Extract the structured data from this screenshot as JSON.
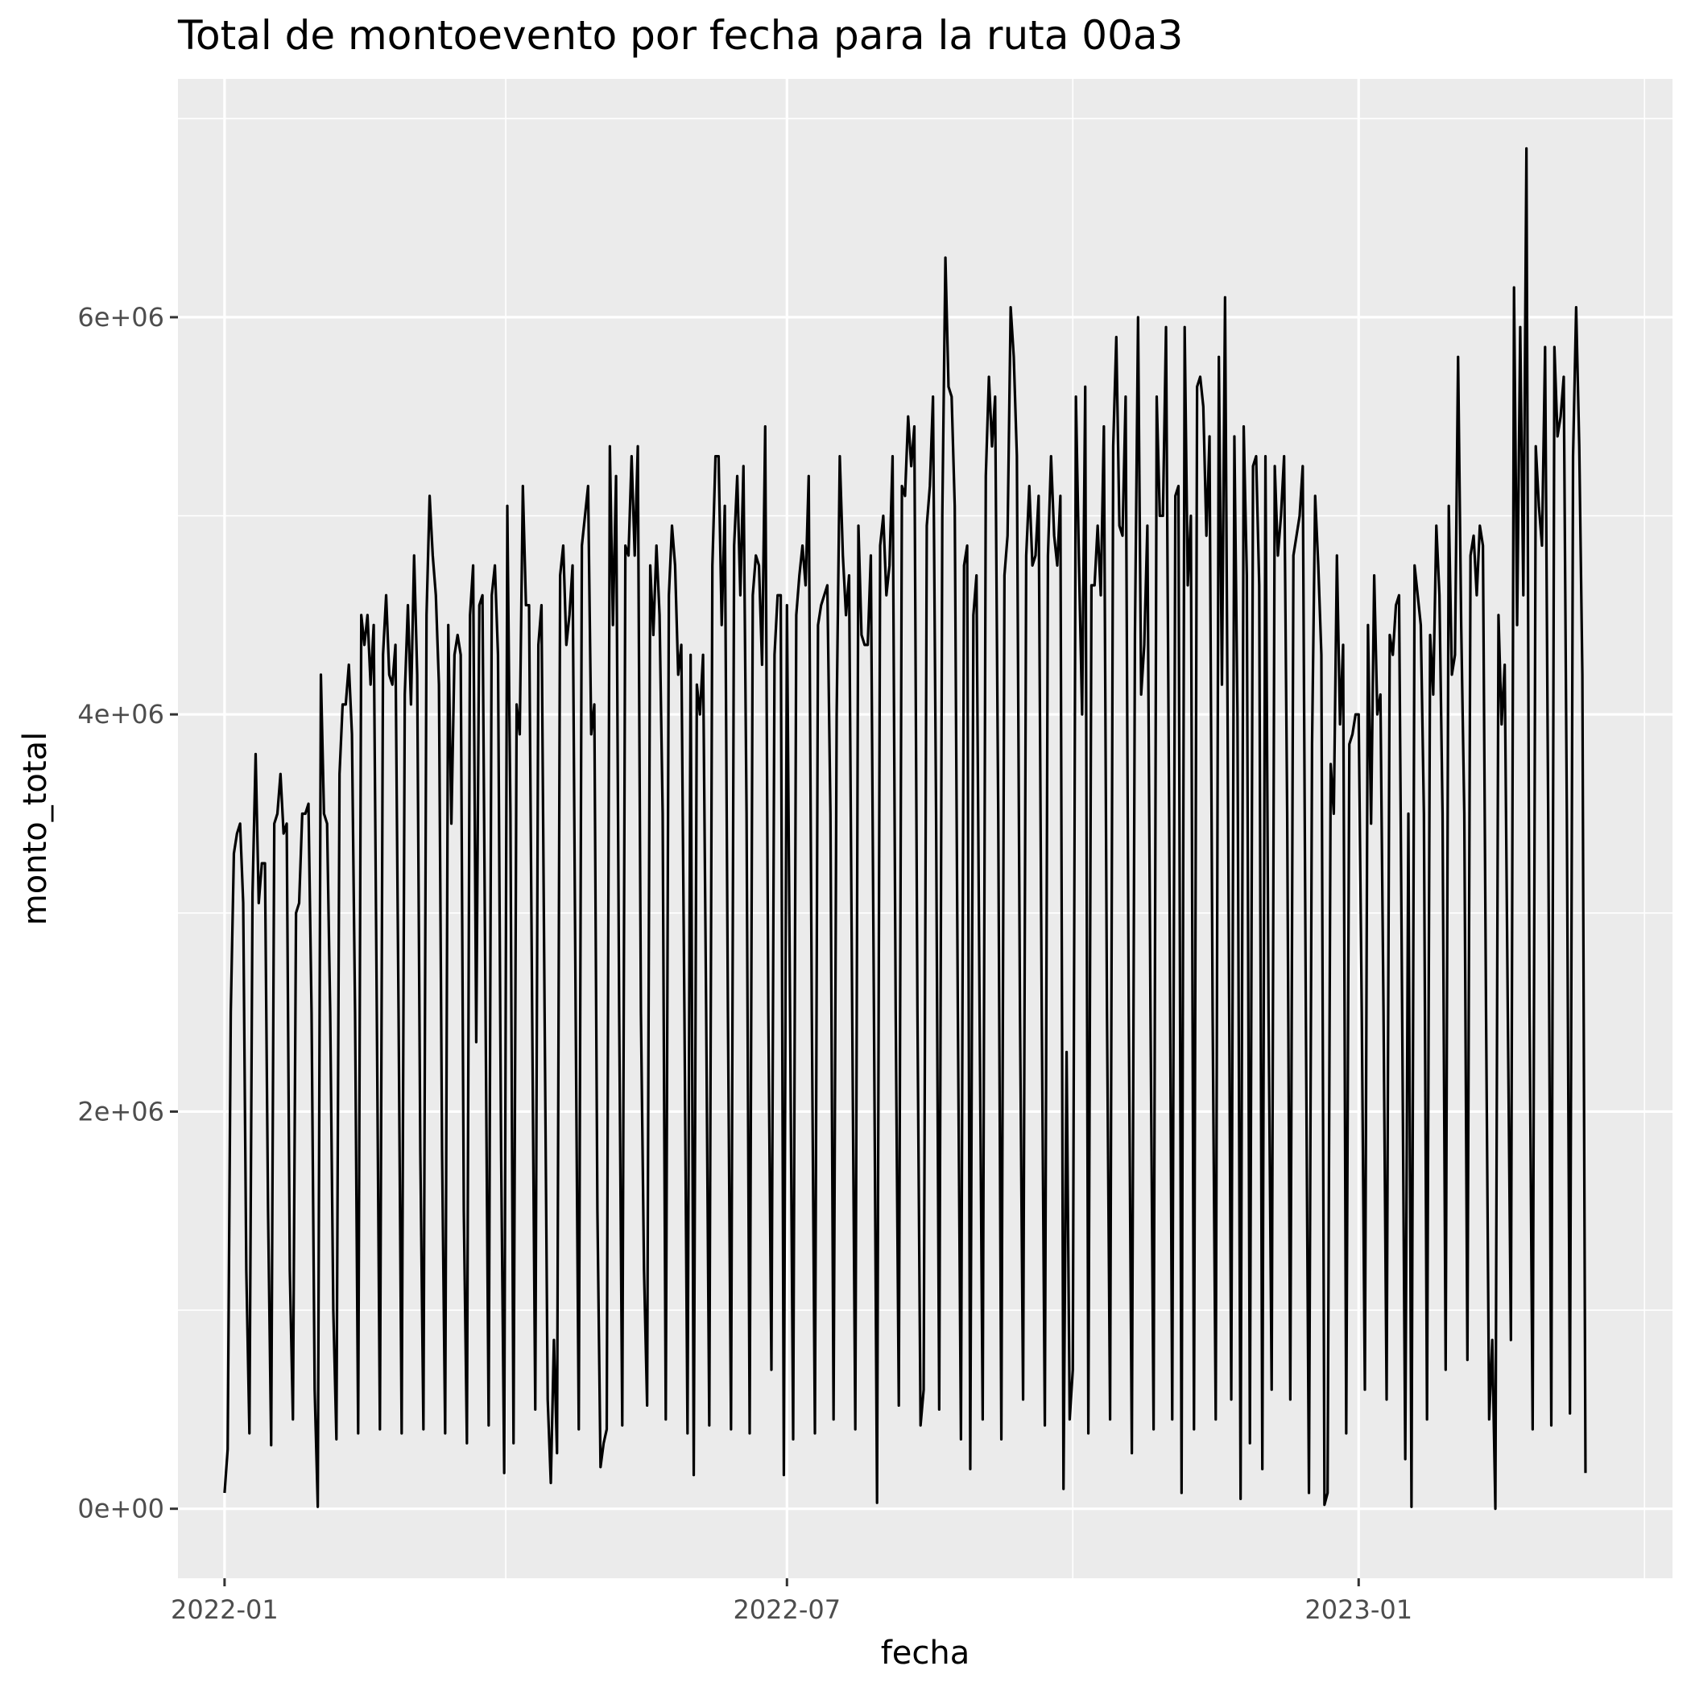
{
  "chart_data": {
    "type": "line",
    "title": "Total de montoevento por fecha para la ruta 00a3",
    "xlabel": "fecha",
    "ylabel": "monto_total",
    "xlim": [
      "2021-12-17",
      "2023-04-12"
    ],
    "ylim": [
      -350000,
      7200000
    ],
    "x_ticks": [
      {
        "date": "2022-01-01",
        "label": "2022-01"
      },
      {
        "date": "2022-07-01",
        "label": "2022-07"
      },
      {
        "date": "2023-01-01",
        "label": "2023-01"
      }
    ],
    "y_ticks": [
      {
        "value": 0,
        "label": "0e+00"
      },
      {
        "value": 2000000,
        "label": "2e+06"
      },
      {
        "value": 4000000,
        "label": "4e+06"
      },
      {
        "value": 6000000,
        "label": "6e+06"
      }
    ],
    "grid": true,
    "legend": "none",
    "series": [
      {
        "color": "#000000",
        "start_date": "2022-01-01",
        "values": [
          80000,
          300000,
          2500000,
          3300000,
          3400000,
          3450000,
          3050000,
          1200000,
          380000,
          3100000,
          3800000,
          3050000,
          3250000,
          3250000,
          1500000,
          320000,
          3450000,
          3500000,
          3700000,
          3400000,
          3450000,
          1200000,
          450000,
          3000000,
          3050000,
          3500000,
          3500000,
          3550000,
          2500000,
          600000,
          10000,
          4200000,
          3500000,
          3450000,
          2500000,
          1000000,
          350000,
          3700000,
          4050000,
          4050000,
          4250000,
          3900000,
          2500000,
          380000,
          4500000,
          4350000,
          4500000,
          4150000,
          4450000,
          2500000,
          400000,
          4300000,
          4600000,
          4200000,
          4150000,
          4350000,
          2500000,
          380000,
          4100000,
          4550000,
          4050000,
          4800000,
          4200000,
          1800000,
          400000,
          4500000,
          5100000,
          4800000,
          4600000,
          4150000,
          1800000,
          380000,
          4450000,
          3450000,
          4300000,
          4400000,
          4300000,
          1500000,
          330000,
          4500000,
          4750000,
          2350000,
          4550000,
          4600000,
          2500000,
          420000,
          4600000,
          4750000,
          4300000,
          1800000,
          180000,
          5050000,
          3500000,
          330000,
          4050000,
          3900000,
          5150000,
          4550000,
          4550000,
          2500000,
          500000,
          4350000,
          4550000,
          2500000,
          550000,
          130000,
          850000,
          280000,
          4700000,
          4850000,
          4350000,
          4500000,
          4750000,
          2500000,
          400000,
          4850000,
          5000000,
          5150000,
          3900000,
          4050000,
          1500000,
          210000,
          330000,
          400000,
          5350000,
          4450000,
          5200000,
          2500000,
          420000,
          4850000,
          4800000,
          5300000,
          4800000,
          5350000,
          2500000,
          1200000,
          520000,
          4750000,
          4400000,
          4850000,
          4500000,
          3500000,
          450000,
          4600000,
          4950000,
          4750000,
          4200000,
          4350000,
          2500000,
          380000,
          4300000,
          170000,
          4150000,
          4000000,
          4300000,
          2500000,
          420000,
          4750000,
          5300000,
          5300000,
          4450000,
          5050000,
          2500000,
          400000,
          4850000,
          5200000,
          4600000,
          5250000,
          3500000,
          380000,
          4600000,
          4800000,
          4750000,
          4250000,
          5450000,
          2500000,
          700000,
          4300000,
          4600000,
          4600000,
          170000,
          4550000,
          2500000,
          350000,
          4500000,
          4700000,
          4850000,
          4650000,
          5200000,
          2500000,
          380000,
          4450000,
          4550000,
          4600000,
          4650000,
          3500000,
          450000,
          4000000,
          5300000,
          4800000,
          4500000,
          4700000,
          2500000,
          400000,
          4950000,
          4400000,
          4350000,
          4350000,
          4800000,
          2500000,
          30000,
          4850000,
          5000000,
          4600000,
          4750000,
          5300000,
          2500000,
          520000,
          5150000,
          5100000,
          5500000,
          5250000,
          5450000,
          2500000,
          420000,
          600000,
          4950000,
          5150000,
          5600000,
          3500000,
          500000,
          5000000,
          6300000,
          5650000,
          5600000,
          5050000,
          2500000,
          350000,
          4750000,
          4850000,
          200000,
          4500000,
          4700000,
          2500000,
          450000,
          5200000,
          5700000,
          5350000,
          5600000,
          3500000,
          350000,
          4700000,
          4900000,
          6050000,
          5800000,
          5300000,
          2500000,
          550000,
          4800000,
          5150000,
          4750000,
          4800000,
          5100000,
          2500000,
          420000,
          4800000,
          5300000,
          4900000,
          4750000,
          5100000,
          100000,
          2300000,
          450000,
          700000,
          5600000,
          4750000,
          4000000,
          5650000,
          380000,
          4650000,
          4650000,
          4950000,
          4600000,
          5450000,
          2500000,
          450000,
          5350000,
          5900000,
          4950000,
          4900000,
          5600000,
          2500000,
          280000,
          4400000,
          6000000,
          4100000,
          4350000,
          4950000,
          2500000,
          400000,
          5600000,
          5000000,
          5000000,
          5950000,
          3500000,
          450000,
          5100000,
          5150000,
          80000,
          5950000,
          4650000,
          5000000,
          400000,
          5650000,
          5700000,
          5550000,
          4900000,
          5400000,
          2500000,
          450000,
          5800000,
          4150000,
          6100000,
          3500000,
          550000,
          5400000,
          4000000,
          50000,
          5450000,
          4700000,
          330000,
          5250000,
          5300000,
          4650000,
          200000,
          5300000,
          2500000,
          600000,
          5250000,
          4800000,
          5000000,
          5300000,
          3500000,
          550000,
          4800000,
          4900000,
          5000000,
          5250000,
          2500000,
          80000,
          3850000,
          5100000,
          4750000,
          4300000,
          20000,
          80000,
          3750000,
          3500000,
          4800000,
          3950000,
          4350000,
          380000,
          3850000,
          3900000,
          4000000,
          4000000,
          2500000,
          600000,
          4450000,
          3450000,
          4700000,
          4000000,
          4100000,
          2500000,
          550000,
          4400000,
          4300000,
          4550000,
          4600000,
          2500000,
          250000,
          3500000,
          10000,
          4750000,
          4600000,
          4450000,
          3500000,
          450000,
          4400000,
          4100000,
          4950000,
          4600000,
          3500000,
          700000,
          5050000,
          4200000,
          4300000,
          5800000,
          4450000,
          3500000,
          750000,
          4800000,
          4900000,
          4600000,
          4950000,
          4850000,
          2500000,
          450000,
          850000,
          0,
          4500000,
          3950000,
          4250000,
          2500000,
          850000,
          6150000,
          4450000,
          5950000,
          4600000,
          6850000,
          2500000,
          400000,
          5350000,
          5050000,
          4850000,
          5850000,
          3500000,
          420000,
          5850000,
          5400000,
          5500000,
          5700000,
          3500000,
          480000,
          5300000,
          6050000,
          5350000,
          4200000,
          180000
        ]
      }
    ]
  }
}
